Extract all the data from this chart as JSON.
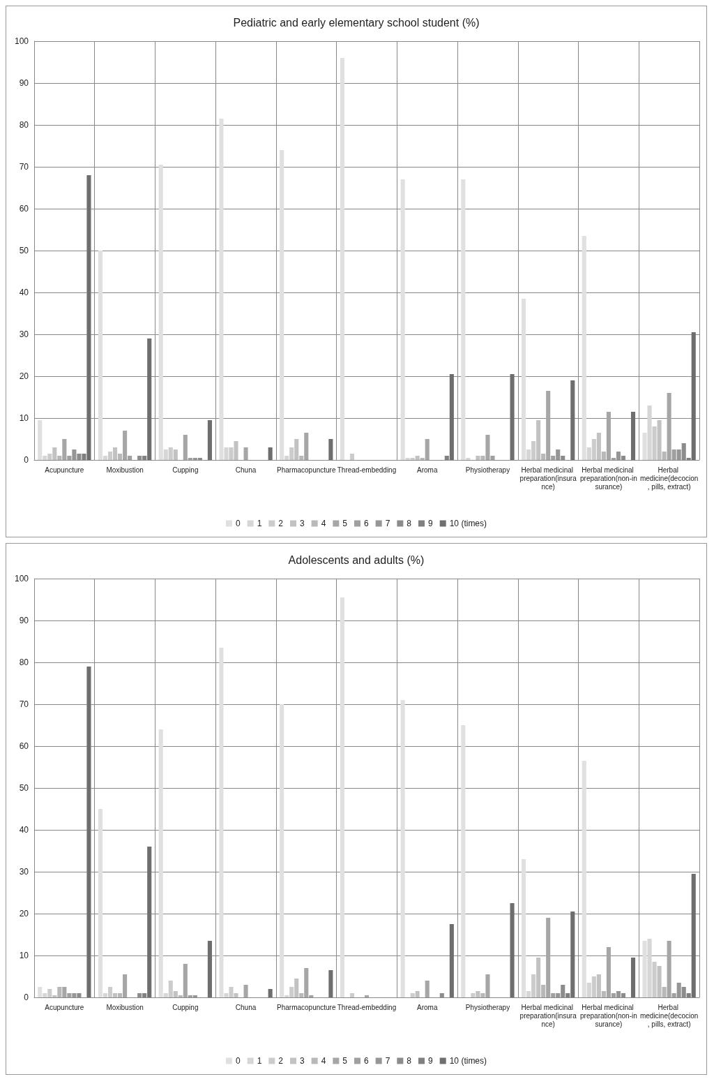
{
  "chart_data": [
    {
      "type": "bar",
      "title": "Pediatric and early elementary school student (%)",
      "categories": [
        "Acupuncture",
        "Moxibustion",
        "Cupping",
        "Chuna",
        "Pharmacopuncture",
        "Thread-embedding",
        "Aroma",
        "Physiotherapy",
        "Herbal medicinal preparation(insurance)",
        "Herbal medicinal preparation(non-insurance)",
        "Herbal medicine(decocion, pills, extract)"
      ],
      "ylim": [
        0,
        100
      ],
      "yticks": [
        0,
        10,
        20,
        30,
        40,
        50,
        60,
        70,
        80,
        90,
        100
      ],
      "grid": true,
      "legend": "bottom",
      "series": [
        {
          "name": "0",
          "color": "#e0e0e0",
          "values": [
            9.5,
            50,
            70.5,
            81.5,
            74,
            96,
            67,
            67,
            38.5,
            53.5,
            6.5
          ]
        },
        {
          "name": "1",
          "color": "#d6d6d6",
          "values": [
            1,
            1,
            2.5,
            3,
            1,
            0,
            0.5,
            0.5,
            2.5,
            3,
            13
          ]
        },
        {
          "name": "2",
          "color": "#cccccc",
          "values": [
            1.5,
            2,
            3,
            3,
            3,
            1.5,
            0.5,
            0,
            4.5,
            5,
            8
          ]
        },
        {
          "name": "3",
          "color": "#c2c2c2",
          "values": [
            3,
            3,
            2.5,
            4.5,
            5,
            0,
            1,
            1,
            9.5,
            6.5,
            9.5
          ]
        },
        {
          "name": "4",
          "color": "#b8b8b8",
          "values": [
            1,
            1.5,
            0,
            0,
            1,
            0,
            0.5,
            1,
            1.5,
            2,
            2
          ]
        },
        {
          "name": "5",
          "color": "#a6a6a6",
          "values": [
            5,
            7,
            6,
            3,
            6.5,
            0,
            5,
            6,
            16.5,
            11.5,
            16
          ]
        },
        {
          "name": "6",
          "color": "#a0a0a0",
          "values": [
            1,
            1,
            0.5,
            0,
            0,
            0,
            0,
            1,
            1,
            0.5,
            2.5
          ]
        },
        {
          "name": "7",
          "color": "#969696",
          "values": [
            2.5,
            0,
            0.5,
            0,
            0,
            0,
            0,
            0,
            2.5,
            2,
            2.5
          ]
        },
        {
          "name": "8",
          "color": "#8c8c8c",
          "values": [
            1.5,
            1,
            0.5,
            0,
            0,
            0,
            0,
            0,
            1,
            1,
            4
          ]
        },
        {
          "name": "9",
          "color": "#808080",
          "values": [
            1.5,
            1,
            0,
            0,
            0,
            0,
            1,
            0,
            0,
            0,
            0.5
          ]
        },
        {
          "name": "10 (times)",
          "color": "#6e6e6e",
          "values": [
            68,
            29,
            9.5,
            3,
            5,
            0,
            20.5,
            20.5,
            19,
            11.5,
            30.5
          ]
        }
      ]
    },
    {
      "type": "bar",
      "title": "Adolescents and adults (%)",
      "categories": [
        "Acupuncture",
        "Moxibustion",
        "Cupping",
        "Chuna",
        "Pharmacopuncture",
        "Thread-embedding",
        "Aroma",
        "Physiotherapy",
        "Herbal medicinal preparation(insurance)",
        "Herbal medicinal preparation(non-insurance)",
        "Herbal medicine(decocion, pills, extract)"
      ],
      "ylim": [
        0,
        100
      ],
      "yticks": [
        0,
        10,
        20,
        30,
        40,
        50,
        60,
        70,
        80,
        90,
        100
      ],
      "grid": true,
      "legend": "bottom",
      "series": [
        {
          "name": "0",
          "color": "#e0e0e0",
          "values": [
            2.5,
            45,
            64,
            83.5,
            70,
            95.5,
            71,
            65,
            33,
            56.5,
            13.5
          ]
        },
        {
          "name": "1",
          "color": "#d6d6d6",
          "values": [
            1,
            1,
            1,
            1,
            0.5,
            0,
            0,
            0,
            1.5,
            3.5,
            14
          ]
        },
        {
          "name": "2",
          "color": "#cccccc",
          "values": [
            2,
            2.5,
            4,
            2.5,
            2.5,
            1,
            1,
            1,
            5.5,
            5,
            8.5
          ]
        },
        {
          "name": "3",
          "color": "#c2c2c2",
          "values": [
            0.5,
            1,
            1.5,
            1,
            4.5,
            0,
            1.5,
            1.5,
            9.5,
            5.5,
            7.5
          ]
        },
        {
          "name": "4",
          "color": "#b8b8b8",
          "values": [
            2.5,
            1,
            0.5,
            0,
            1,
            0,
            0,
            1,
            3,
            1.5,
            2.5
          ]
        },
        {
          "name": "5",
          "color": "#a6a6a6",
          "values": [
            2.5,
            5.5,
            8,
            3,
            7,
            0.5,
            4,
            5.5,
            19,
            12,
            13.5
          ]
        },
        {
          "name": "6",
          "color": "#a0a0a0",
          "values": [
            1,
            0,
            0.5,
            0,
            0.5,
            0,
            0,
            0,
            1,
            1,
            1
          ]
        },
        {
          "name": "7",
          "color": "#969696",
          "values": [
            1,
            0,
            0.5,
            0,
            0,
            0,
            0,
            0,
            1,
            1.5,
            3.5
          ]
        },
        {
          "name": "8",
          "color": "#8c8c8c",
          "values": [
            1,
            1,
            0,
            0,
            0,
            0,
            1,
            0,
            3,
            1,
            2.5
          ]
        },
        {
          "name": "9",
          "color": "#808080",
          "values": [
            0,
            1,
            0,
            0,
            0,
            0,
            0,
            0,
            1,
            0,
            1
          ]
        },
        {
          "name": "10 (times)",
          "color": "#6e6e6e",
          "values": [
            79,
            36,
            13.5,
            2,
            6.5,
            0,
            17.5,
            22.5,
            20.5,
            9.5,
            29.5
          ]
        }
      ]
    }
  ]
}
